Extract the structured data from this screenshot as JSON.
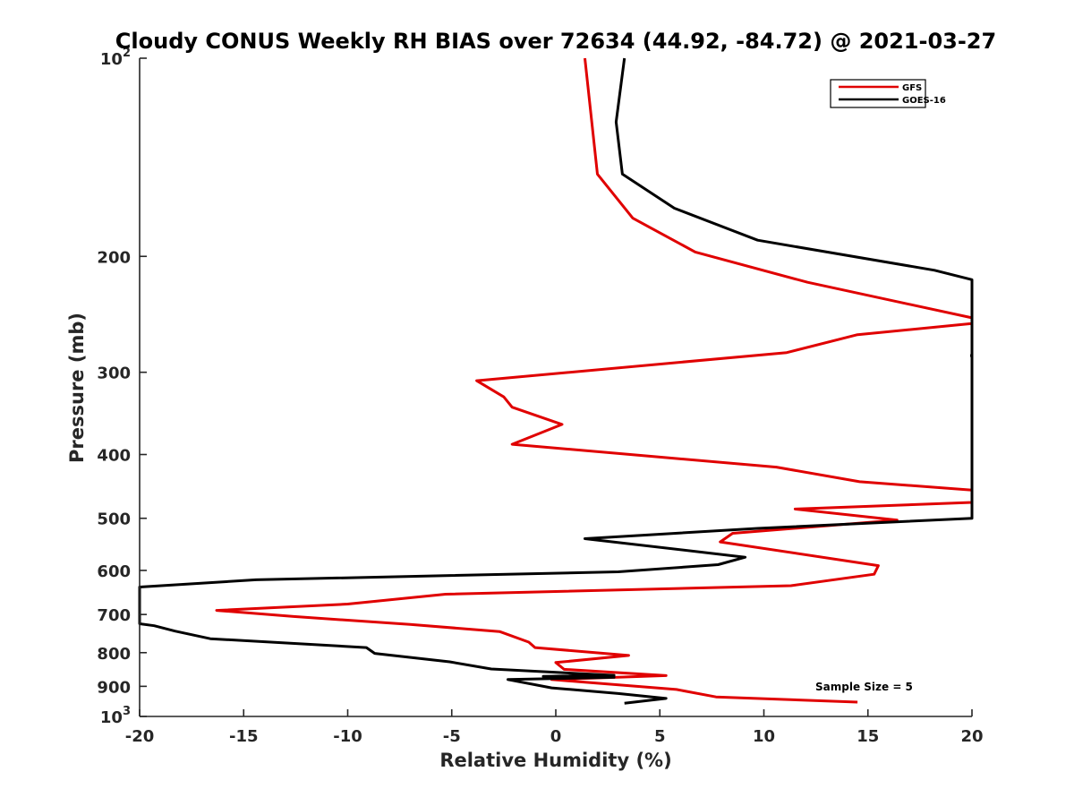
{
  "chart_data": {
    "type": "line",
    "title": "Cloudy CONUS Weekly RH BIAS over 72634 (44.92, -84.72) @ 2021-03-27",
    "xlabel": "Relative Humidity (%)",
    "ylabel": "Pressure (mb)",
    "xlim": [
      -20,
      20
    ],
    "ylim": [
      100,
      1000
    ],
    "y_scale": "log",
    "y_reversed": true,
    "grid": false,
    "legend_position": "top-right",
    "x_ticks": [
      "-20",
      "-15",
      "-10",
      "-5",
      "0",
      "5",
      "10",
      "15",
      "20"
    ],
    "y_ticks": [
      {
        "value": 100,
        "base": "10",
        "exp": "2"
      },
      {
        "value": 200,
        "label": "200"
      },
      {
        "value": 300,
        "label": "300"
      },
      {
        "value": 400,
        "label": "400"
      },
      {
        "value": 500,
        "label": "500"
      },
      {
        "value": 600,
        "label": "600"
      },
      {
        "value": 700,
        "label": "700"
      },
      {
        "value": 800,
        "label": "800"
      },
      {
        "value": 900,
        "label": "900"
      },
      {
        "value": 1000,
        "base": "10",
        "exp": "3"
      }
    ],
    "annotation": "Sample Size = 5",
    "series": [
      {
        "name": "GFS",
        "color": "#e00000",
        "points": [
          [
            1.4,
            100
          ],
          [
            2.0,
            150
          ],
          [
            3.7,
            175
          ],
          [
            6.7,
            197
          ],
          [
            12.1,
            219
          ],
          [
            20.0,
            248
          ],
          [
            20.0,
            253
          ],
          [
            14.5,
            263
          ],
          [
            11.1,
            280
          ],
          [
            -3.8,
            309
          ],
          [
            -2.5,
            327
          ],
          [
            -2.1,
            339
          ],
          [
            0.3,
            360
          ],
          [
            -2.1,
            386
          ],
          [
            10.6,
            418
          ],
          [
            14.6,
            440
          ],
          [
            20.0,
            453
          ],
          [
            20.0,
            473
          ],
          [
            11.5,
            484
          ],
          [
            16.4,
            503
          ],
          [
            8.5,
            527
          ],
          [
            7.9,
            543
          ],
          [
            15.5,
            590
          ],
          [
            15.3,
            608
          ],
          [
            11.3,
            633
          ],
          [
            -5.3,
            652
          ],
          [
            -10.0,
            675
          ],
          [
            -16.3,
            690
          ],
          [
            -12.6,
            705
          ],
          [
            -7.0,
            725
          ],
          [
            -2.7,
            743
          ],
          [
            -1.3,
            771
          ],
          [
            -1.0,
            786
          ],
          [
            3.5,
            808
          ],
          [
            0.0,
            828
          ],
          [
            0.4,
            848
          ],
          [
            5.3,
            867
          ],
          [
            -0.2,
            879
          ],
          [
            5.8,
            910
          ],
          [
            7.7,
            934
          ],
          [
            14.5,
            951
          ]
        ]
      },
      {
        "name": "GOES-16",
        "color": "#000000",
        "points": [
          [
            3.3,
            100
          ],
          [
            2.9,
            125
          ],
          [
            3.2,
            150
          ],
          [
            5.7,
            169
          ],
          [
            9.7,
            189
          ],
          [
            18.2,
            210
          ],
          [
            20.0,
            217
          ],
          [
            20.0,
            500
          ],
          [
            9.7,
            518
          ],
          [
            1.4,
            537
          ],
          [
            9.1,
            573
          ],
          [
            7.8,
            588
          ],
          [
            3.0,
            603
          ],
          [
            -14.4,
            620
          ],
          [
            -20.0,
            636
          ],
          [
            -20.0,
            723
          ],
          [
            -19.3,
            728
          ],
          [
            -18.3,
            742
          ],
          [
            -16.6,
            762
          ],
          [
            -9.1,
            786
          ],
          [
            -8.7,
            802
          ],
          [
            -5.1,
            826
          ],
          [
            -3.1,
            847
          ],
          [
            2.8,
            866
          ],
          [
            -0.6,
            869
          ],
          [
            2.8,
            872
          ],
          [
            -2.3,
            879
          ],
          [
            -0.2,
            905
          ],
          [
            3.0,
            923
          ],
          [
            5.3,
            939
          ],
          [
            3.3,
            955
          ]
        ]
      }
    ],
    "extra_marks": [
      {
        "x": 20.0,
        "y": 283,
        "color": "#000000"
      }
    ]
  }
}
